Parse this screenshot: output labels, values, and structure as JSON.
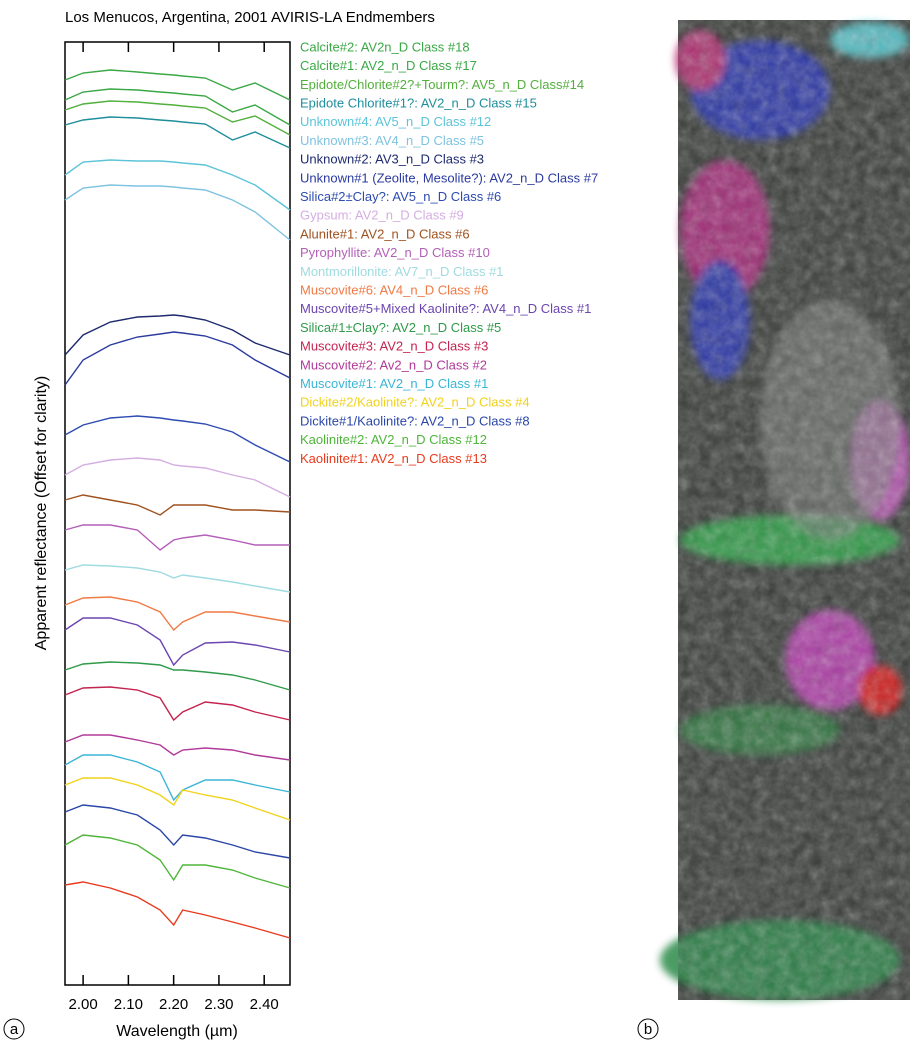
{
  "chart_data": {
    "type": "line",
    "title": "Los Menucos, Argentina, 2001 AVIRIS-LA Endmembers",
    "x_label": "Wavelength (µm)",
    "y_label": "Apparent reflectance (Offset for clarity)",
    "x": [
      1.96,
      2.0,
      2.06,
      2.12,
      2.17,
      2.2,
      2.22,
      2.27,
      2.33,
      2.38,
      2.457
    ],
    "xlim": [
      1.96,
      2.457
    ],
    "xticks": [
      {
        "value": 2.0,
        "label": "2.00"
      },
      {
        "value": 2.1,
        "label": "2.10"
      },
      {
        "value": 2.2,
        "label": "2.20"
      },
      {
        "value": 2.3,
        "label": "2.30"
      },
      {
        "value": 2.4,
        "label": "2.40"
      }
    ],
    "ylim": [
      0,
      943
    ],
    "series": [
      {
        "name": "Calcite#2: AV2n_D Class #18",
        "color": "#3aa845",
        "values": [
          905,
          912,
          915,
          913,
          911,
          910,
          909,
          907,
          895,
          902,
          885
        ]
      },
      {
        "name": "Calcite#1: AV2_n_D Class #17",
        "color": "#3aa845",
        "values": [
          885,
          893,
          896,
          895,
          893,
          892,
          891,
          889,
          873,
          880,
          860
        ]
      },
      {
        "name": "Epidote/Chlorite#2?+Tourm?: AV5_n_D Class#14",
        "color": "#52b03c",
        "values": [
          875,
          881,
          884,
          883,
          881,
          880,
          879,
          877,
          863,
          869,
          850
        ]
      },
      {
        "name": "Epidote Chlorite#1?: AV2_n_D Class #15",
        "color": "#1f8e9c",
        "values": [
          860,
          865,
          868,
          867,
          865,
          864,
          863,
          861,
          845,
          853,
          837
        ]
      },
      {
        "name": "Unknown#4: AV5_n_D Class #12",
        "color": "#5cc4d8",
        "values": [
          810,
          823,
          825,
          824,
          824,
          823,
          822,
          820,
          810,
          800,
          775
        ]
      },
      {
        "name": "Unknown#3: AV4_n_D Class #5",
        "color": "#7ec3e0",
        "values": [
          785,
          797,
          800,
          799,
          799,
          798,
          797,
          795,
          785,
          773,
          745
        ]
      },
      {
        "name": "Unknown#2: AV3_n_D Class #3",
        "color": "#1e2a6e",
        "values": [
          630,
          650,
          663,
          668,
          669,
          670,
          669,
          665,
          655,
          642,
          630
        ]
      },
      {
        "name": "Unknown#1 (Zeolite, Mesolite?): AV2_n_D Class #7",
        "color": "#2b3a9e",
        "values": [
          600,
          625,
          640,
          648,
          651,
          653,
          652,
          649,
          640,
          625,
          607
        ]
      },
      {
        "name": "Silica#2±Clay?: AV5_n_D Class #6",
        "color": "#2d4bb0",
        "values": [
          550,
          560,
          567,
          569,
          567,
          565,
          564,
          561,
          553,
          540,
          523
        ]
      },
      {
        "name": "Gypsum: AV2_n_D Class #9",
        "color": "#d4aee0",
        "values": [
          510,
          520,
          525,
          527,
          525,
          520,
          519,
          517,
          510,
          505,
          488
        ]
      },
      {
        "name": "Alunite#1: AV2_n_D Class #6",
        "color": "#a0521e",
        "values": [
          485,
          490,
          485,
          480,
          470,
          480,
          480,
          480,
          475,
          475,
          473
        ]
      },
      {
        "name": "Pyrophyllite: AV2_n_D Class #10",
        "color": "#b35fb8",
        "values": [
          455,
          460,
          460,
          455,
          435,
          445,
          447,
          450,
          445,
          440,
          440
        ]
      },
      {
        "name": "Montmorillonite: AV7_n_D Class #1",
        "color": "#9fdbe0",
        "values": [
          415,
          420,
          419,
          417,
          413,
          407,
          410,
          407,
          403,
          399,
          393
        ]
      },
      {
        "name": "Muscovite#6: AV4_n_D Class #6",
        "color": "#f07a45",
        "values": [
          380,
          387,
          388,
          383,
          373,
          355,
          363,
          373,
          373,
          369,
          363
        ]
      },
      {
        "name": "Muscovite#5+Mixed Kaolinite?: AV4_n_D Class #1",
        "color": "#6b45b0",
        "values": [
          355,
          367,
          367,
          360,
          345,
          320,
          330,
          342,
          343,
          340,
          333
        ]
      },
      {
        "name": "Silica#1±Clay?: AV2_n_D Class #5",
        "color": "#2f9a4a",
        "values": [
          315,
          321,
          323,
          322,
          320,
          315,
          315,
          313,
          310,
          305,
          295
        ]
      },
      {
        "name": "Muscovite#3: AV2_n_D Class #3",
        "color": "#c4234f",
        "values": [
          290,
          297,
          298,
          295,
          287,
          265,
          273,
          283,
          280,
          273,
          265
        ]
      },
      {
        "name": "Muscovite#2: Av2_n_D Class #2",
        "color": "#b03a9a",
        "values": [
          243,
          250,
          250,
          245,
          240,
          230,
          235,
          237,
          235,
          230,
          225
        ]
      },
      {
        "name": "Muscovite#1: AV2_n_D Class #1",
        "color": "#3bb5d6",
        "values": [
          220,
          230,
          230,
          223,
          213,
          185,
          195,
          205,
          205,
          200,
          193
        ]
      },
      {
        "name": "Dickite#2/Kaolinite?: AV2_n_D Class #4",
        "color": "#f2d21a",
        "values": [
          200,
          207,
          207,
          200,
          190,
          180,
          195,
          190,
          185,
          177,
          165
        ]
      },
      {
        "name": "Dickite#1/Kaolinite?: AV2_n_D Class #8",
        "color": "#2a46a8",
        "values": [
          173,
          180,
          177,
          170,
          155,
          140,
          150,
          147,
          140,
          133,
          127
        ]
      },
      {
        "name": "Kaolinite#2: AV2_n_D Class #12",
        "color": "#4fb53a",
        "values": [
          140,
          150,
          147,
          140,
          125,
          105,
          120,
          120,
          115,
          107,
          97
        ]
      },
      {
        "name": "Kaolinite#1: AV2_n_D Class #13",
        "color": "#e83a1e",
        "values": [
          100,
          103,
          97,
          88,
          75,
          60,
          75,
          70,
          63,
          57,
          47
        ]
      }
    ]
  },
  "panel_labels": [
    "a",
    "b"
  ]
}
